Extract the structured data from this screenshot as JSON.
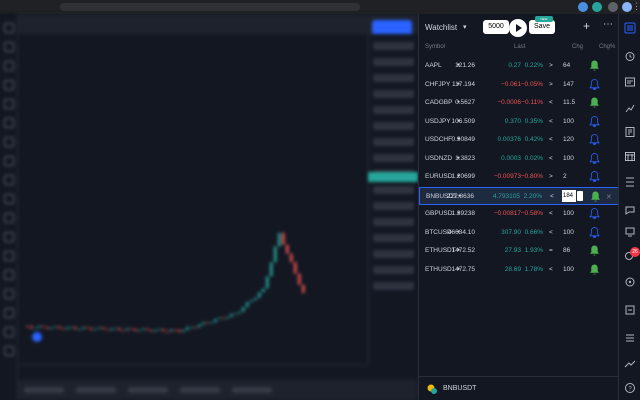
{
  "browser": {
    "url": "tradingview.com"
  },
  "watchlist": {
    "title": "Watchlist",
    "input_value": "5000",
    "save_label": "Save",
    "badge_label": "NEW",
    "columns": {
      "symbol": "Symbol",
      "last": "Last",
      "chg": "Chg",
      "chg_pct": "Chg%"
    },
    "rows": [
      {
        "symbol": "AAPL",
        "last": "121.26",
        "chg": "0.27",
        "pct": "0.22%",
        "dir": "up",
        "op": ">",
        "value": "64",
        "bell": "green"
      },
      {
        "symbol": "CHFJPY",
        "last": "117.194",
        "chg": "−0.061",
        "pct": "−0.05%",
        "dir": "down",
        "op": ">",
        "value": "147",
        "bell": "outline"
      },
      {
        "symbol": "CADGBP",
        "last": "0.5627",
        "chg": "−0.0006",
        "pct": "−0.11%",
        "dir": "down",
        "op": "<",
        "value": "11.5",
        "bell": "green"
      },
      {
        "symbol": "USDJPY",
        "last": "106.509",
        "chg": "0.370",
        "pct": "0.35%",
        "dir": "up",
        "op": "<",
        "value": "100",
        "bell": "outline"
      },
      {
        "symbol": "USDCHF",
        "last": "0.90849",
        "chg": "0.00376",
        "pct": "0.42%",
        "dir": "up",
        "op": "<",
        "value": "120",
        "bell": "outline"
      },
      {
        "symbol": "USDNZD",
        "last": "1.3823",
        "chg": "0.0003",
        "pct": "0.02%",
        "dir": "up",
        "op": "<",
        "value": "100",
        "bell": "outline"
      },
      {
        "symbol": "EURUSD",
        "last": "1.20699",
        "chg": "−0.00973",
        "pct": "−0.80%",
        "dir": "down",
        "op": ">",
        "value": "2",
        "bell": "outline"
      },
      {
        "symbol": "BNBUSDT",
        "last": "222.8636",
        "chg": "4.793105",
        "pct": "2.20%",
        "dir": "up",
        "op": "<",
        "value": "184",
        "bell": "green",
        "selected": true
      },
      {
        "symbol": "GBPUSD",
        "last": "1.39238",
        "chg": "−0.00817",
        "pct": "−0.58%",
        "dir": "down",
        "op": "<",
        "value": "100",
        "bell": "outline"
      },
      {
        "symbol": "BTCUSD",
        "last": "46634.10",
        "chg": "307.90",
        "pct": "0.66%",
        "dir": "up",
        "op": "<",
        "value": "100",
        "bell": "outline"
      },
      {
        "symbol": "ETHUSDT",
        "last": "1472.52",
        "chg": "27.93",
        "pct": "1.93%",
        "dir": "up",
        "op": "=",
        "value": "86",
        "bell": "green"
      },
      {
        "symbol": "ETHUSD",
        "last": "1472.75",
        "chg": "28.69",
        "pct": "1.78%",
        "dir": "up",
        "op": "<",
        "value": "100",
        "bell": "green"
      }
    ],
    "footer_symbol": "BNBUSDT"
  },
  "notifications_badge": "26",
  "colors": {
    "up": "#26a69a",
    "down": "#ef5350",
    "accent": "#2962ff",
    "bell_active": "#4caf50",
    "background": "#131722"
  },
  "chart_data": {
    "type": "candlestick",
    "note": ""
  }
}
